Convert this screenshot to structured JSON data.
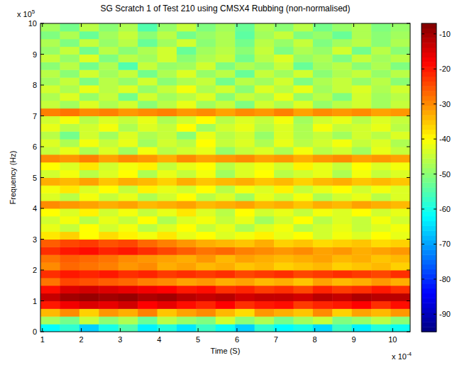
{
  "chart_data": {
    "type": "heatmap",
    "title": "SG Scratch 1 of Test 210 using CMSX4 Rubbing (non-normalised)",
    "xlabel": "Time (S)",
    "ylabel": "Frequency (Hz)",
    "x_scale_label": {
      "base": "x 10",
      "exponent": "-4"
    },
    "y_scale_label": {
      "base": "x 10",
      "exponent": "5"
    },
    "xlim": [
      0.95,
      10.45
    ],
    "ylim": [
      0,
      10
    ],
    "xticks": [
      1,
      2,
      3,
      4,
      5,
      6,
      7,
      8,
      9,
      10
    ],
    "yticks": [
      0,
      1,
      2,
      3,
      4,
      5,
      6,
      7,
      8,
      9,
      10
    ],
    "grid": false,
    "x": [
      1.2,
      1.7,
      2.2,
      2.7,
      3.2,
      3.7,
      4.2,
      4.7,
      5.2,
      5.7,
      6.2,
      6.7,
      7.2,
      7.7,
      8.2,
      8.7,
      9.2,
      9.7,
      10.2
    ],
    "y": [
      0.125,
      0.375,
      0.625,
      0.875,
      1.125,
      1.375,
      1.625,
      1.875,
      2.125,
      2.375,
      2.625,
      2.875,
      3.125,
      3.375,
      3.625,
      3.875,
      4.125,
      4.375,
      4.625,
      4.875,
      5.125,
      5.375,
      5.625,
      5.875,
      6.125,
      6.375,
      6.625,
      6.875,
      7.125,
      7.375,
      7.625,
      7.875,
      8.125,
      8.375,
      8.625,
      8.875,
      9.125,
      9.375,
      9.625,
      9.875
    ],
    "cells": [
      [
        -62,
        -58,
        -66,
        -60,
        -55,
        -63,
        -59,
        -64,
        -57,
        -61,
        -66,
        -58,
        -62,
        -60,
        -65,
        -57,
        -63,
        -59,
        -61
      ],
      [
        -48,
        -52,
        -45,
        -50,
        -47,
        -53,
        -46,
        -49,
        -51,
        -44,
        -50,
        -47,
        -52,
        -48,
        -45,
        -51,
        -49,
        -46,
        -50
      ],
      [
        -34,
        -30,
        -36,
        -31,
        -33,
        -29,
        -35,
        -32,
        -30,
        -34,
        -37,
        -31,
        -33,
        -35,
        -30,
        -36,
        -32,
        -34,
        -31
      ],
      [
        -20,
        -17,
        -15,
        -16,
        -14,
        -18,
        -16,
        -19,
        -21,
        -18,
        -22,
        -20,
        -19,
        -23,
        -21,
        -20,
        -18,
        -22,
        -19
      ],
      [
        -13,
        -10,
        -9,
        -10,
        -9,
        -11,
        -10,
        -12,
        -13,
        -12,
        -14,
        -13,
        -13,
        -14,
        -12,
        -13,
        -11,
        -12,
        -12
      ],
      [
        -19,
        -15,
        -14,
        -15,
        -16,
        -17,
        -18,
        -20,
        -19,
        -22,
        -21,
        -23,
        -22,
        -24,
        -21,
        -23,
        -22,
        -20,
        -22
      ],
      [
        -28,
        -24,
        -25,
        -26,
        -27,
        -29,
        -30,
        -32,
        -31,
        -33,
        -32,
        -34,
        -33,
        -35,
        -32,
        -34,
        -33,
        -31,
        -33
      ],
      [
        -22,
        -20,
        -21,
        -20,
        -22,
        -21,
        -23,
        -22,
        -23,
        -22,
        -24,
        -23,
        -22,
        -24,
        -23,
        -22,
        -23,
        -24,
        -22
      ],
      [
        -30,
        -27,
        -28,
        -29,
        -31,
        -30,
        -33,
        -32,
        -34,
        -33,
        -35,
        -34,
        -36,
        -35,
        -34,
        -36,
        -35,
        -34,
        -36
      ],
      [
        -28,
        -26,
        -27,
        -28,
        -30,
        -31,
        -32,
        -33,
        -31,
        -34,
        -32,
        -33,
        -34,
        -33,
        -32,
        -34,
        -33,
        -35,
        -34
      ],
      [
        -22,
        -20,
        -19,
        -21,
        -20,
        -22,
        -24,
        -26,
        -28,
        -27,
        -29,
        -30,
        -31,
        -30,
        -32,
        -31,
        -33,
        -32,
        -31
      ],
      [
        -26,
        -24,
        -23,
        -25,
        -24,
        -27,
        -29,
        -31,
        -33,
        -34,
        -35,
        -33,
        -36,
        -35,
        -37,
        -36,
        -35,
        -37,
        -36
      ],
      [
        -38,
        -36,
        -40,
        -37,
        -39,
        -41,
        -38,
        -42,
        -40,
        -43,
        -41,
        -39,
        -42,
        -40,
        -44,
        -41,
        -43,
        -40,
        -42
      ],
      [
        -42,
        -45,
        -40,
        -44,
        -41,
        -46,
        -43,
        -40,
        -45,
        -42,
        -47,
        -43,
        -41,
        -46,
        -44,
        -42,
        -45,
        -43,
        -41
      ],
      [
        -44,
        -41,
        -46,
        -42,
        -45,
        -40,
        -47,
        -43,
        -41,
        -45,
        -42,
        -48,
        -44,
        -40,
        -46,
        -43,
        -45,
        -41,
        -44
      ],
      [
        -40,
        -43,
        -39,
        -44,
        -41,
        -45,
        -42,
        -38,
        -43,
        -46,
        -40,
        -44,
        -42,
        -45,
        -41,
        -43,
        -40,
        -44,
        -42
      ],
      [
        -30,
        -31,
        -32,
        -33,
        -32,
        -34,
        -33,
        -32,
        -34,
        -33,
        -32,
        -34,
        -33,
        -35,
        -33,
        -34,
        -32,
        -33,
        -34
      ],
      [
        -43,
        -46,
        -41,
        -45,
        -42,
        -47,
        -44,
        -40,
        -46,
        -43,
        -48,
        -42,
        -45,
        -41,
        -47,
        -44,
        -42,
        -46,
        -43
      ],
      [
        -41,
        -38,
        -43,
        -40,
        -45,
        -39,
        -42,
        -44,
        -40,
        -46,
        -41,
        -43,
        -39,
        -45,
        -42,
        -40,
        -44,
        -41,
        -43
      ],
      [
        -33,
        -34,
        -32,
        -35,
        -33,
        -34,
        -36,
        -33,
        -35,
        -34,
        -33,
        -35,
        -34,
        -36,
        -34,
        -33,
        -35,
        -34,
        -35
      ],
      [
        -44,
        -41,
        -46,
        -43,
        -40,
        -47,
        -42,
        -45,
        -41,
        -48,
        -43,
        -40,
        -46,
        -44,
        -42,
        -47,
        -41,
        -45,
        -43
      ],
      [
        -40,
        -43,
        -38,
        -44,
        -41,
        -39,
        -45,
        -42,
        -40,
        -46,
        -43,
        -41,
        -44,
        -39,
        -42,
        -45,
        -40,
        -43,
        -41
      ],
      [
        -30,
        -31,
        -29,
        -32,
        -30,
        -31,
        -33,
        -30,
        -32,
        -31,
        -30,
        -32,
        -31,
        -33,
        -31,
        -30,
        -32,
        -31,
        -32
      ],
      [
        -45,
        -42,
        -47,
        -43,
        -48,
        -41,
        -46,
        -44,
        -42,
        -49,
        -45,
        -43,
        -47,
        -41,
        -46,
        -44,
        -48,
        -42,
        -45
      ],
      [
        -43,
        -47,
        -41,
        -45,
        -42,
        -48,
        -44,
        -46,
        -40,
        -45,
        -43,
        -47,
        -42,
        -46,
        -44,
        -41,
        -45,
        -43,
        -47
      ],
      [
        -46,
        -52,
        -44,
        -48,
        -43,
        -47,
        -45,
        -50,
        -42,
        -46,
        -44,
        -49,
        -43,
        -47,
        -45,
        -48,
        -44,
        -46,
        -43
      ],
      [
        -42,
        -46,
        -44,
        -41,
        -47,
        -43,
        -45,
        -40,
        -48,
        -44,
        -42,
        -46,
        -43,
        -47,
        -41,
        -45,
        -44,
        -42,
        -46
      ],
      [
        -44,
        -41,
        -46,
        -43,
        -45,
        -42,
        -47,
        -44,
        -40,
        -46,
        -43,
        -45,
        -41,
        -48,
        -44,
        -42,
        -46,
        -43,
        -45
      ],
      [
        -29,
        -28,
        -30,
        -29,
        -31,
        -30,
        -29,
        -31,
        -30,
        -32,
        -30,
        -31,
        -29,
        -32,
        -30,
        -31,
        -30,
        -32,
        -31
      ],
      [
        -45,
        -48,
        -43,
        -47,
        -44,
        -50,
        -46,
        -42,
        -48,
        -45,
        -51,
        -44,
        -47,
        -43,
        -49,
        -46,
        -44,
        -48,
        -45
      ],
      [
        -47,
        -43,
        -49,
        -45,
        -52,
        -44,
        -48,
        -46,
        -43,
        -50,
        -45,
        -47,
        -42,
        -49,
        -46,
        -51,
        -44,
        -48,
        -46
      ],
      [
        -44,
        -47,
        -42,
        -46,
        -43,
        -49,
        -45,
        -41,
        -47,
        -44,
        -50,
        -43,
        -46,
        -42,
        -48,
        -45,
        -43,
        -47,
        -44
      ],
      [
        -48,
        -45,
        -51,
        -46,
        -49,
        -44,
        -50,
        -47,
        -45,
        -52,
        -46,
        -48,
        -44,
        -51,
        -47,
        -45,
        -49,
        -46,
        -50
      ],
      [
        -46,
        -50,
        -44,
        -48,
        -45,
        -52,
        -47,
        -43,
        -49,
        -46,
        -53,
        -45,
        -48,
        -44,
        -50,
        -47,
        -45,
        -49,
        -46
      ],
      [
        -50,
        -46,
        -52,
        -47,
        -55,
        -45,
        -49,
        -48,
        -44,
        -51,
        -47,
        -49,
        -45,
        -53,
        -48,
        -46,
        -50,
        -47,
        -51
      ],
      [
        -45,
        -49,
        -43,
        -51,
        -46,
        -48,
        -44,
        -50,
        -47,
        -45,
        -52,
        -46,
        -43,
        -49,
        -47,
        -51,
        -45,
        -48,
        -46
      ],
      [
        -49,
        -45,
        -52,
        -46,
        -50,
        -47,
        -44,
        -53,
        -48,
        -46,
        -50,
        -45,
        -51,
        -47,
        -49,
        -44,
        -52,
        -46,
        -50
      ],
      [
        -47,
        -51,
        -45,
        -49,
        -46,
        -53,
        -48,
        -44,
        -50,
        -47,
        -52,
        -46,
        -49,
        -45,
        -51,
        -48,
        -46,
        -50,
        -47
      ],
      [
        -51,
        -47,
        -53,
        -48,
        -45,
        -50,
        -46,
        -52,
        -49,
        -47,
        -54,
        -48,
        -45,
        -51,
        -49,
        -53,
        -47,
        -50,
        -48
      ],
      [
        -48,
        -52,
        -46,
        -50,
        -47,
        -55,
        -49,
        -45,
        -51,
        -48,
        -53,
        -47,
        -50,
        -46,
        -52,
        -49,
        -47,
        -51,
        -49
      ]
    ],
    "colorbar": {
      "range": [
        -95,
        -7
      ],
      "ticks": [
        -10,
        -20,
        -30,
        -40,
        -50,
        -60,
        -70,
        -80,
        -90
      ]
    }
  }
}
